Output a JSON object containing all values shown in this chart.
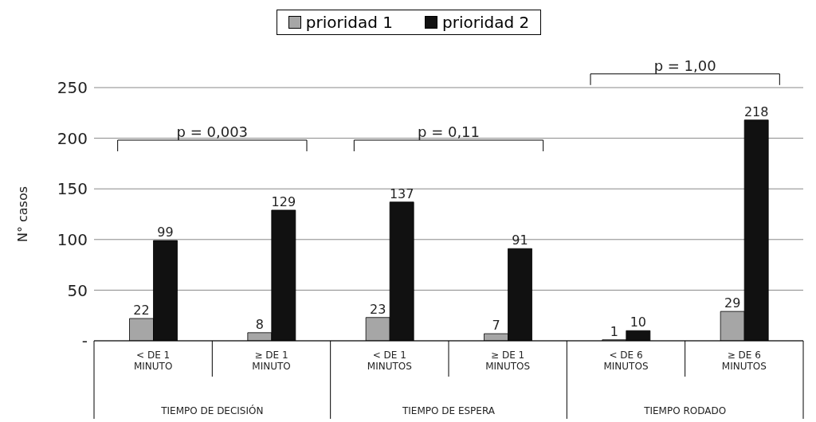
{
  "chart_data": {
    "type": "bar",
    "ylabel": "N° casos",
    "categories": [
      "< DE 1 MINUTO",
      "≥ DE 1 MINUTO",
      "< DE 1 MINUTOS",
      "≥ DE 1 MINUTOS",
      "< DE 6 MINUTOS",
      "≥ DE 6 MINUTOS"
    ],
    "series": [
      {
        "name": "prioridad 1",
        "color": "#a6a6a6",
        "values": [
          22,
          8,
          23,
          7,
          1,
          29
        ]
      },
      {
        "name": "prioridad 2",
        "color": "#111111",
        "values": [
          99,
          129,
          137,
          91,
          10,
          218
        ]
      }
    ],
    "ylim": [
      0,
      250
    ],
    "yticks": [
      {
        "value": 0,
        "label": "-"
      },
      50,
      100,
      150,
      200,
      250
    ],
    "grid": "y",
    "legend": "top",
    "data_labels": true,
    "annotations": [
      "p = 0,003",
      "p = 0,11",
      "p = 1,00",
      "TIEMPO DE DECISIÓN",
      "TIEMPO DE ESPERA",
      "TIEMPO RODADO"
    ]
  }
}
